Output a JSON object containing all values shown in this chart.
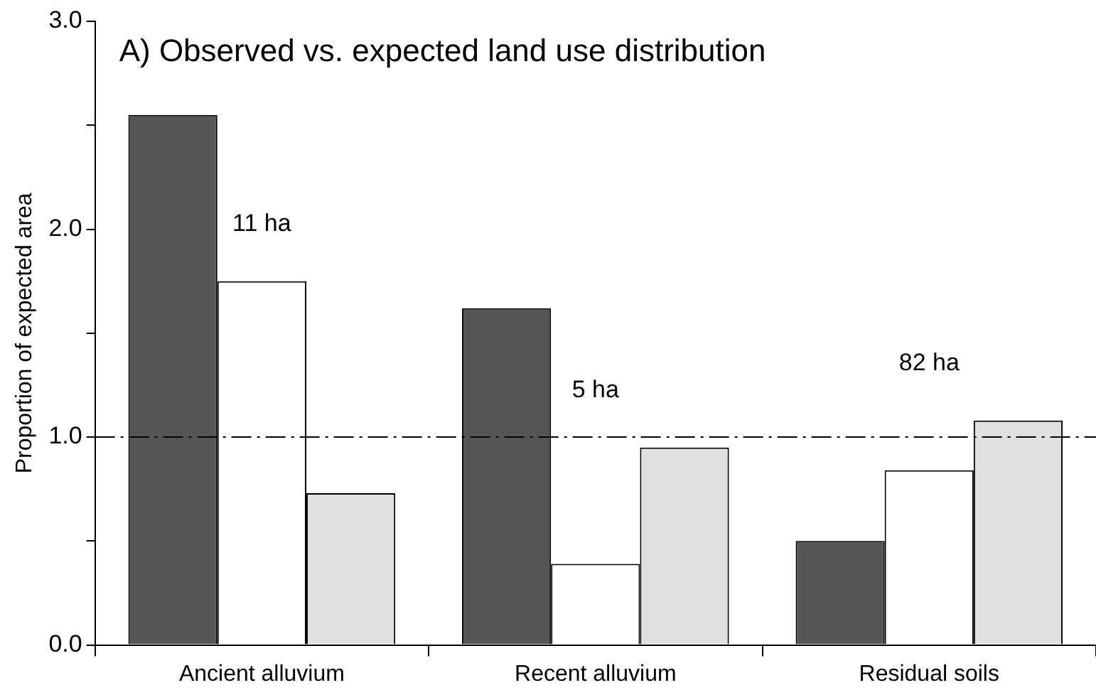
{
  "chart_data": {
    "type": "bar",
    "title": "A) Observed vs. expected land use distribution",
    "ylabel": "Proportion of expected area",
    "categories": [
      "Ancient alluvium",
      "Recent alluvium",
      "Residual soils"
    ],
    "series": [
      {
        "color": "#555555",
        "values": [
          2.55,
          1.62,
          0.5
        ]
      },
      {
        "color": "#ffffff",
        "values": [
          1.75,
          0.39,
          0.84
        ]
      },
      {
        "color": "#e0e0e0",
        "values": [
          0.73,
          0.95,
          1.08
        ]
      }
    ],
    "ylim": [
      0,
      3
    ],
    "yticks": [
      {
        "value": 0,
        "label": "0.0"
      },
      {
        "value": 0.5,
        "label": null
      },
      {
        "value": 1,
        "label": "1.0"
      },
      {
        "value": 1.5,
        "label": null
      },
      {
        "value": 2,
        "label": "2.0"
      },
      {
        "value": 2.5,
        "label": null
      },
      {
        "value": 3,
        "label": "3.0"
      }
    ],
    "ref_lines": [
      {
        "axis": "y",
        "value": 1,
        "color": "#000000",
        "line_style": "dashdot"
      }
    ],
    "annotations": [
      "11 ha",
      "5 ha",
      "82 ha"
    ],
    "grid": false,
    "legend": false
  }
}
